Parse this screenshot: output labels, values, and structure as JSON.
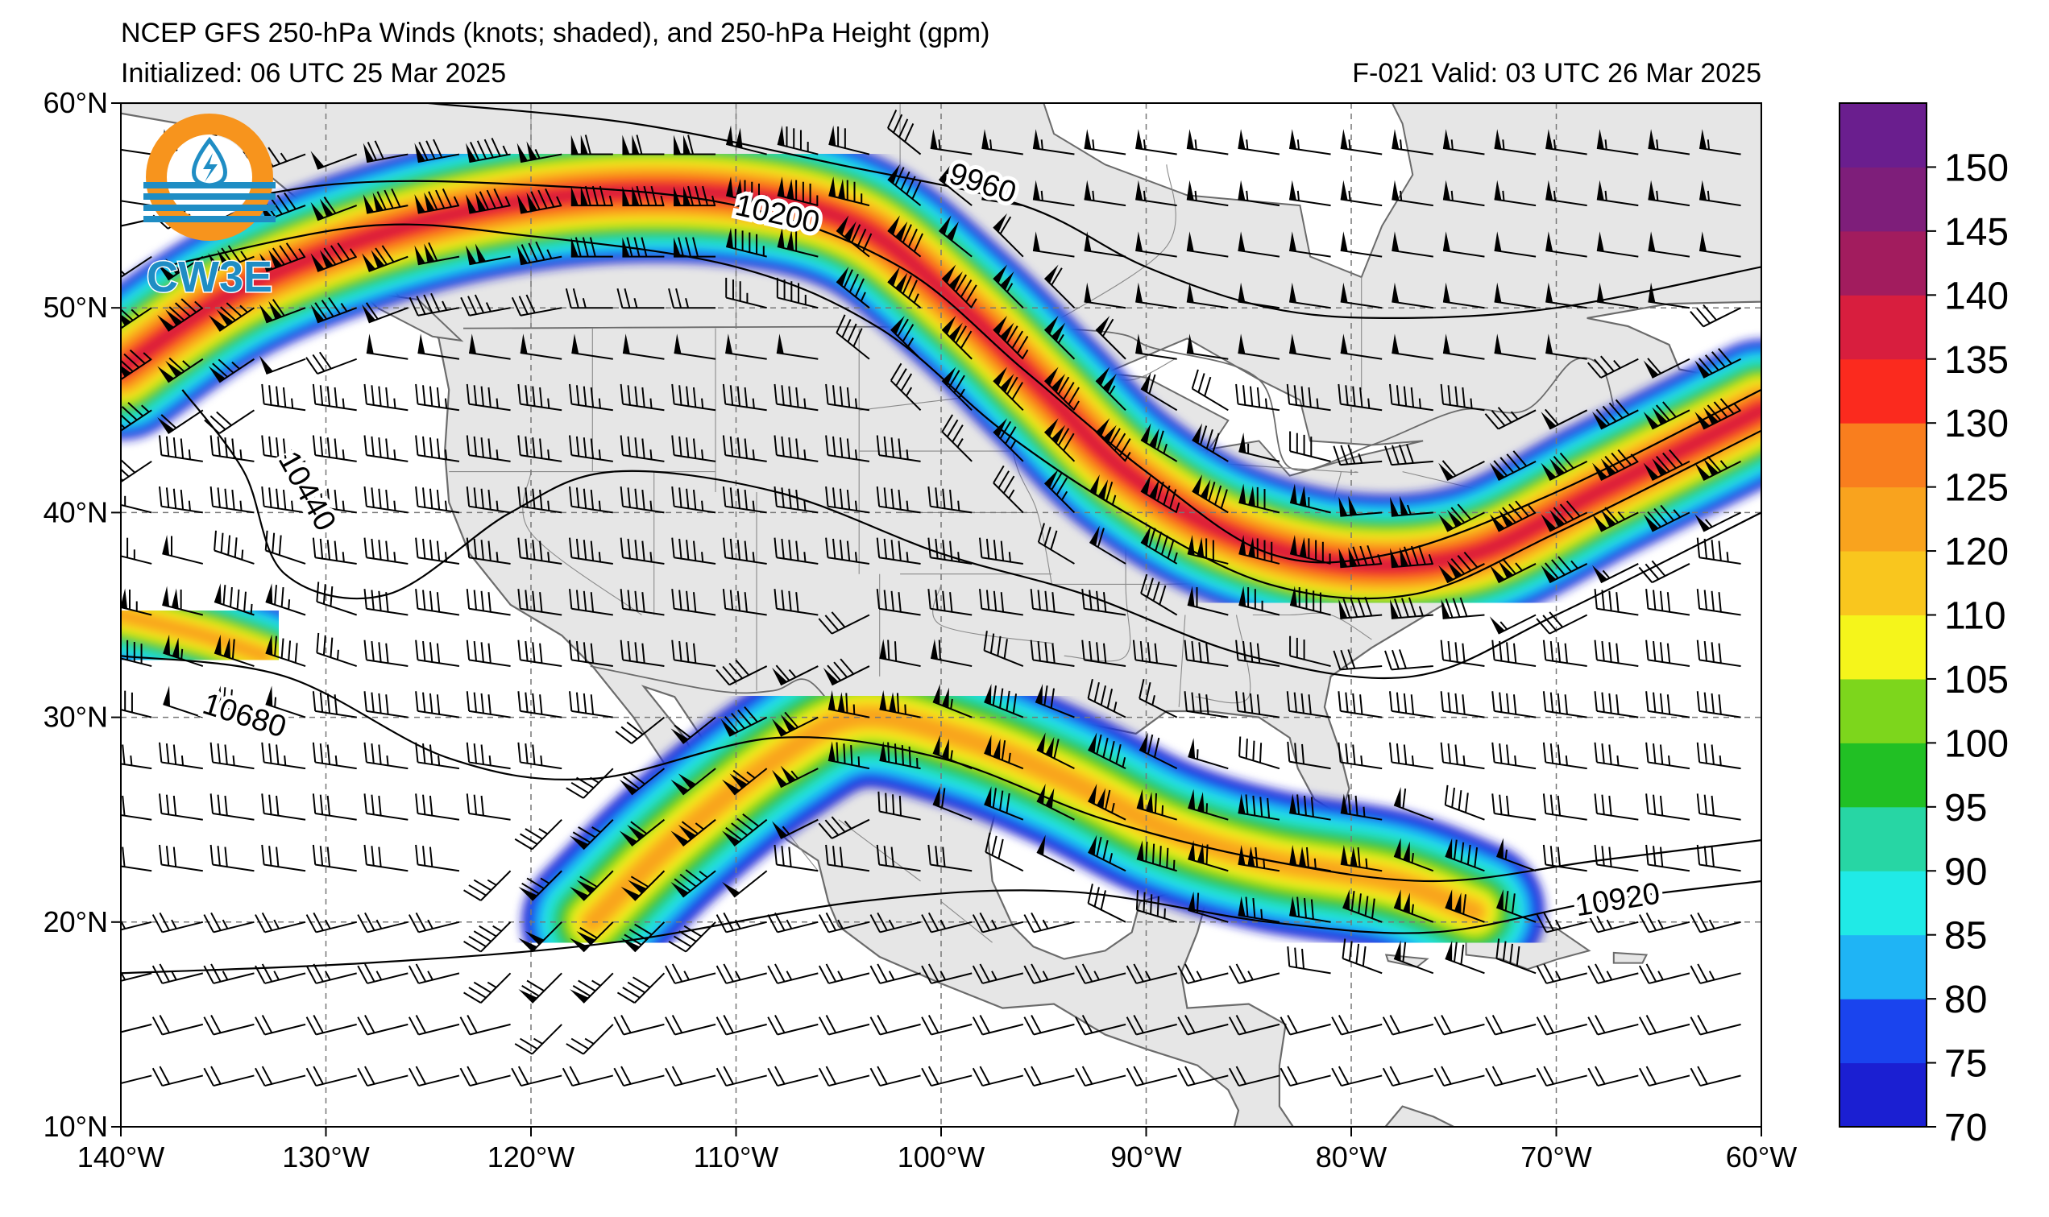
{
  "header": {
    "title": "NCEP GFS 250-hPa Winds (knots; shaded), and 250-hPa Height (gpm)",
    "initialized": "Initialized: 06 UTC 25 Mar 2025",
    "valid": "F-021  Valid: 03 UTC 26 Mar 2025"
  },
  "logo": {
    "text": "CW3E",
    "icon": "water-drop-lightning-icon",
    "ring_color": "#f7941d",
    "water_color": "#1f8dc4"
  },
  "map": {
    "lon_range": [
      -140,
      -60
    ],
    "lat_range": [
      10,
      60
    ],
    "lon_ticks": [
      {
        "v": -140,
        "label": "140°W"
      },
      {
        "v": -130,
        "label": "130°W"
      },
      {
        "v": -120,
        "label": "120°W"
      },
      {
        "v": -110,
        "label": "110°W"
      },
      {
        "v": -100,
        "label": "100°W"
      },
      {
        "v": -90,
        "label": "90°W"
      },
      {
        "v": -80,
        "label": "80°W"
      },
      {
        "v": -70,
        "label": "70°W"
      },
      {
        "v": -60,
        "label": "60°W"
      }
    ],
    "lat_ticks": [
      {
        "v": 60,
        "label": "60°N"
      },
      {
        "v": 50,
        "label": "50°N"
      },
      {
        "v": 40,
        "label": "40°N"
      },
      {
        "v": 30,
        "label": "30°N"
      },
      {
        "v": 20,
        "label": "20°N"
      },
      {
        "v": 10,
        "label": "10°N"
      }
    ],
    "land_color": "#e6e6e6",
    "ocean_color": "#ffffff",
    "gridlines": "dashed"
  },
  "height_contours": [
    {
      "label": "9960",
      "label_at": [
        -98,
        56
      ],
      "points": [
        [
          -125,
          60
        ],
        [
          -115,
          59
        ],
        [
          -105,
          57
        ],
        [
          -96,
          55
        ],
        [
          -90,
          52
        ],
        [
          -84,
          50
        ],
        [
          -78,
          49.5
        ],
        [
          -70,
          50
        ],
        [
          -60,
          52
        ]
      ]
    },
    {
      "label": "10200",
      "label_at": [
        -108,
        54.5
      ],
      "points": [
        [
          -140,
          54
        ],
        [
          -130,
          56
        ],
        [
          -120,
          56
        ],
        [
          -110,
          55
        ],
        [
          -102,
          52
        ],
        [
          -96,
          47
        ],
        [
          -90,
          42
        ],
        [
          -84,
          38
        ],
        [
          -78,
          38
        ],
        [
          -70,
          41
        ],
        [
          -60,
          46
        ]
      ]
    },
    {
      "label": "",
      "label_at": null,
      "points": [
        [
          -138,
          52
        ],
        [
          -128,
          54
        ],
        [
          -120,
          53.5
        ],
        [
          -110,
          52
        ],
        [
          -103,
          49
        ],
        [
          -97,
          44
        ],
        [
          -91,
          40
        ],
        [
          -84,
          36.5
        ],
        [
          -77,
          36
        ],
        [
          -70,
          39
        ],
        [
          -60,
          44
        ]
      ]
    },
    {
      "label": "10440",
      "label_at": [
        -131,
        41
      ],
      "points": [
        [
          -137,
          46
        ],
        [
          -134,
          42
        ],
        [
          -132,
          37
        ],
        [
          -127,
          36
        ],
        [
          -121,
          40
        ],
        [
          -116,
          42
        ],
        [
          -108,
          41
        ],
        [
          -100,
          38
        ],
        [
          -93,
          36
        ],
        [
          -85,
          33
        ],
        [
          -77,
          32
        ],
        [
          -70,
          35
        ],
        [
          -60,
          40
        ]
      ]
    },
    {
      "label": "10680",
      "label_at": [
        -134,
        30
      ],
      "points": [
        [
          -140,
          33
        ],
        [
          -132,
          32
        ],
        [
          -124,
          28
        ],
        [
          -117,
          27
        ],
        [
          -108,
          29
        ],
        [
          -100,
          28
        ],
        [
          -92,
          25
        ],
        [
          -84,
          23
        ],
        [
          -76,
          22
        ],
        [
          -68,
          23
        ],
        [
          -60,
          24
        ]
      ]
    },
    {
      "label": "10920",
      "label_at": [
        -67,
        21
      ],
      "points": [
        [
          -140,
          17.5
        ],
        [
          -128,
          18
        ],
        [
          -116,
          19
        ],
        [
          -104,
          21
        ],
        [
          -94,
          21.5
        ],
        [
          -84,
          20
        ],
        [
          -76,
          19.5
        ],
        [
          -68,
          21
        ],
        [
          -60,
          22
        ]
      ]
    }
  ],
  "jet_streaks": [
    {
      "name": "northern-jet",
      "max_kt": 135,
      "path": [
        [
          -140,
          47
        ],
        [
          -134,
          51
        ],
        [
          -126,
          54
        ],
        [
          -118,
          55.5
        ],
        [
          -110,
          55.5
        ],
        [
          -104,
          54
        ],
        [
          -99,
          50
        ],
        [
          -95,
          46
        ],
        [
          -91,
          42
        ],
        [
          -86,
          39
        ],
        [
          -80,
          37.5
        ],
        [
          -74,
          38
        ],
        [
          -68,
          41
        ],
        [
          -64,
          43
        ],
        [
          -60,
          45
        ]
      ]
    },
    {
      "name": "subtropical-jet",
      "max_kt": 115,
      "path": [
        [
          -117,
          20
        ],
        [
          -113,
          24
        ],
        [
          -108,
          28
        ],
        [
          -104,
          30
        ],
        [
          -99,
          29
        ],
        [
          -94,
          27
        ],
        [
          -89,
          24.5
        ],
        [
          -84,
          23
        ],
        [
          -78,
          22
        ],
        [
          -74,
          20.5
        ]
      ]
    },
    {
      "name": "pacific-streak",
      "max_kt": 115,
      "path": [
        [
          -140,
          35
        ],
        [
          -136,
          34
        ],
        [
          -133,
          33
        ]
      ]
    }
  ],
  "colorbar": {
    "levels": [
      70,
      75,
      80,
      85,
      90,
      95,
      100,
      105,
      110,
      120,
      125,
      130,
      135,
      140,
      145,
      150
    ],
    "labels": [
      "70",
      "75",
      "80",
      "85",
      "90",
      "95",
      "100",
      "105",
      "110",
      "120",
      "125",
      "130",
      "135",
      "140",
      "145",
      "150"
    ],
    "colors": [
      "#1b1fd2",
      "#1a44ee",
      "#1fb4f5",
      "#20eae6",
      "#27d6a4",
      "#21c024",
      "#7dd61c",
      "#f5f51b",
      "#f9c61e",
      "#f9a31e",
      "#f97e1e",
      "#fb2a1e",
      "#d81e3e",
      "#a21c5e",
      "#7e1e7a",
      "#6a1e8e"
    ]
  }
}
